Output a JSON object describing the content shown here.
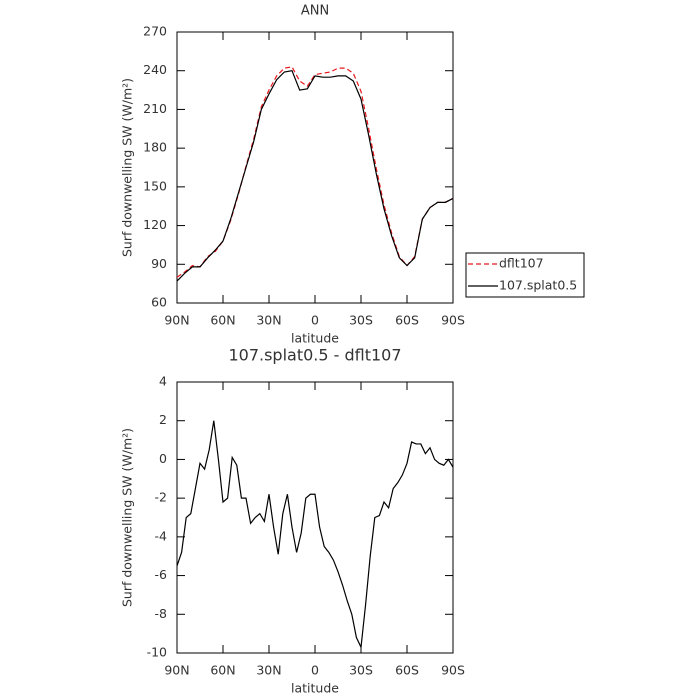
{
  "chart_data": [
    {
      "type": "line",
      "title": "ANN",
      "xlabel": "latitude",
      "ylabel": "Surf downwelling SW (W/m²)",
      "x": [
        90,
        85,
        80,
        75,
        70,
        65,
        60,
        55,
        50,
        45,
        40,
        35,
        30,
        25,
        20,
        15,
        10,
        5,
        0,
        -5,
        -10,
        -15,
        -20,
        -25,
        -30,
        -35,
        -40,
        -45,
        -50,
        -55,
        -60,
        -65,
        -70,
        -75,
        -80,
        -85,
        -90
      ],
      "series": [
        {
          "name": "dflt107",
          "color": "#e8161b",
          "linestyle": "dashed",
          "values": [
            80,
            84,
            89,
            88,
            96,
            100,
            108,
            124,
            144,
            166,
            187,
            212,
            225,
            236,
            242,
            243,
            232,
            228,
            237,
            238,
            239,
            242,
            242,
            238,
            224,
            195,
            164,
            136,
            114,
            96,
            89,
            96,
            125,
            134,
            138,
            138,
            141
          ]
        },
        {
          "name": "107.splat0.5",
          "color": "#000000",
          "linestyle": "solid",
          "values": [
            77,
            83,
            88,
            88,
            95,
            101,
            108,
            125,
            145,
            165,
            185,
            210,
            222,
            233,
            239,
            240,
            225,
            226,
            236,
            235,
            235,
            236,
            236,
            232,
            218,
            190,
            160,
            133,
            112,
            95,
            89,
            95,
            125,
            134,
            138,
            138,
            141
          ]
        }
      ],
      "xlim": [
        90,
        -90
      ],
      "xticks": [
        {
          "value": 90,
          "label": "90N"
        },
        {
          "value": 60,
          "label": "60N"
        },
        {
          "value": 30,
          "label": "30N"
        },
        0,
        {
          "value": -30,
          "label": "30S"
        },
        {
          "value": -60,
          "label": "60S"
        },
        {
          "value": -90,
          "label": "90S"
        }
      ],
      "ylim": [
        60,
        270
      ],
      "yticks": [
        60,
        90,
        120,
        150,
        180,
        210,
        240,
        270
      ],
      "legend": "outside-right"
    },
    {
      "type": "line",
      "title": "107.splat0.5 - dflt107",
      "xlabel": "latitude",
      "ylabel": "Surf downwelling SW (W/m²)",
      "x": [
        90,
        87,
        84,
        81,
        78,
        75,
        72,
        69,
        66,
        63,
        60,
        57,
        54,
        51,
        48,
        45,
        42,
        39,
        36,
        33,
        30,
        27,
        24,
        21,
        18,
        15,
        12,
        9,
        6,
        3,
        0,
        -3,
        -6,
        -9,
        -12,
        -15,
        -18,
        -21,
        -24,
        -27,
        -30,
        -33,
        -36,
        -39,
        -42,
        -45,
        -48,
        -51,
        -54,
        -57,
        -60,
        -63,
        -66,
        -69,
        -72,
        -75,
        -78,
        -81,
        -84,
        -87,
        -90
      ],
      "series": [
        {
          "color": "#000000",
          "linestyle": "solid",
          "values": [
            -5.5,
            -4.8,
            -3.0,
            -2.8,
            -1.5,
            -0.2,
            -0.5,
            0.5,
            2.0,
            0.0,
            -2.2,
            -2.0,
            0.1,
            -0.3,
            -2.0,
            -2.0,
            -3.3,
            -3.0,
            -2.8,
            -3.2,
            -1.8,
            -3.5,
            -4.9,
            -2.8,
            -1.8,
            -3.5,
            -4.8,
            -3.8,
            -2.0,
            -1.8,
            -1.8,
            -3.5,
            -4.5,
            -4.8,
            -5.2,
            -5.8,
            -6.5,
            -7.3,
            -8.0,
            -9.2,
            -9.7,
            -7.5,
            -5.0,
            -3.0,
            -2.9,
            -2.2,
            -2.5,
            -1.5,
            -1.2,
            -0.8,
            -0.2,
            0.9,
            0.8,
            0.8,
            0.3,
            0.6,
            0.0,
            -0.2,
            -0.3,
            0.0,
            -0.4
          ]
        }
      ],
      "xlim": [
        90,
        -90
      ],
      "xticks": [
        {
          "value": 90,
          "label": "90N"
        },
        {
          "value": 60,
          "label": "60N"
        },
        {
          "value": 30,
          "label": "30N"
        },
        0,
        {
          "value": -30,
          "label": "30S"
        },
        {
          "value": -60,
          "label": "60S"
        },
        {
          "value": -90,
          "label": "90S"
        }
      ],
      "ylim": [
        -10,
        4
      ],
      "yticks": [
        -10,
        -8,
        -6,
        -4,
        -2,
        0,
        2,
        4
      ]
    }
  ]
}
